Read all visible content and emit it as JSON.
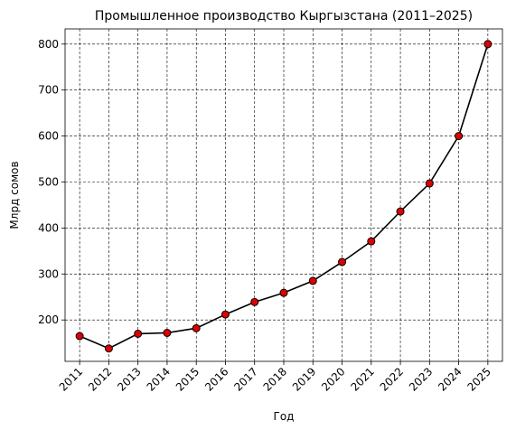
{
  "chart_data": {
    "type": "line",
    "title": "Промышленное производство Кыргызстана (2011–2025)",
    "xlabel": "Год",
    "ylabel": "Млрд сомов",
    "x": [
      2011,
      2012,
      2013,
      2014,
      2015,
      2016,
      2017,
      2018,
      2019,
      2020,
      2021,
      2022,
      2023,
      2024,
      2025
    ],
    "series": [
      {
        "name": "Промышленное производство",
        "color": "#000000",
        "marker_color": "#e00000",
        "values": [
          165,
          138,
          170,
          172,
          182,
          212,
          239,
          259,
          285,
          326,
          371,
          436,
          497,
          600,
          800
        ]
      }
    ],
    "xlim": [
      2010.5,
      2025.5
    ],
    "ylim": [
      110,
      833
    ],
    "xticks": [
      2011,
      2012,
      2013,
      2014,
      2015,
      2016,
      2017,
      2018,
      2019,
      2020,
      2021,
      2022,
      2023,
      2024,
      2025
    ],
    "yticks": [
      200,
      300,
      400,
      500,
      600,
      700,
      800
    ],
    "grid": true
  }
}
